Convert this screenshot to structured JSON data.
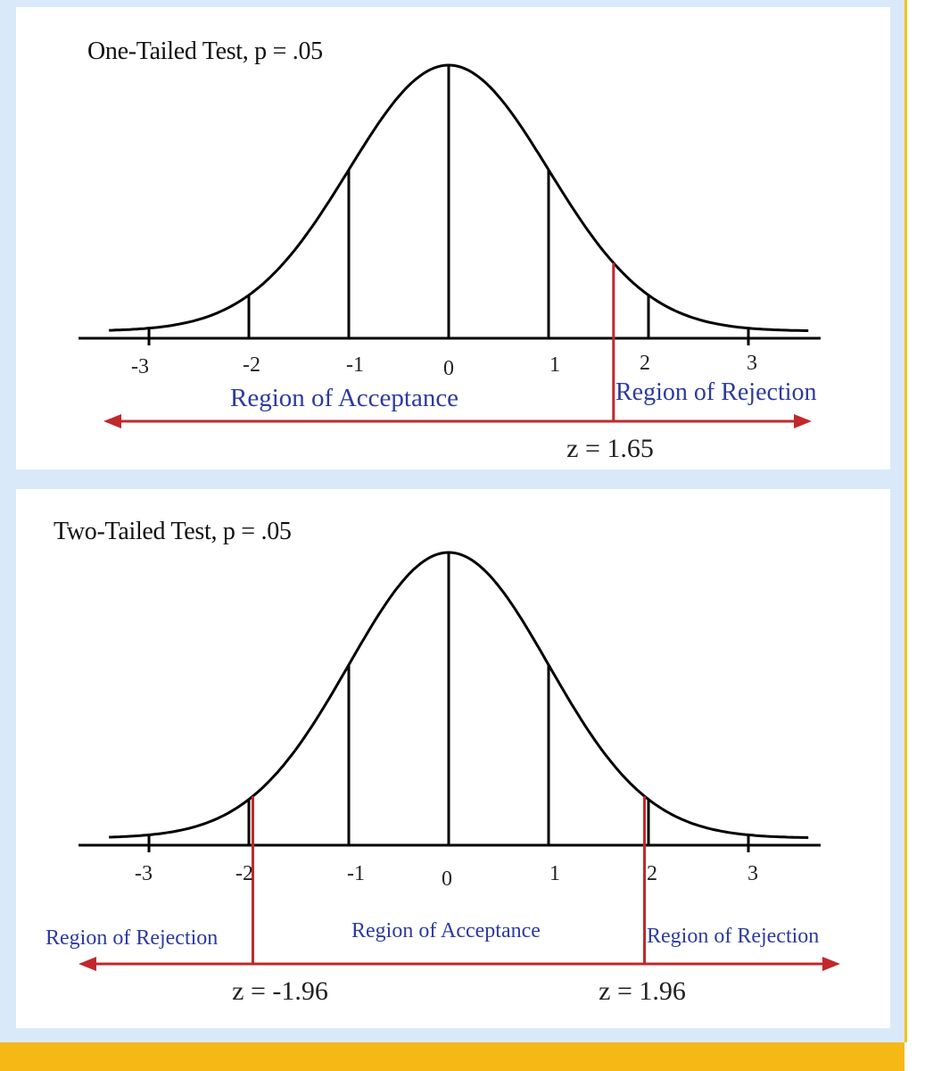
{
  "colors": {
    "frame": "#d9e9f9",
    "accent": "#f6b814",
    "curve": "#000000",
    "critical": "#c0282d",
    "region_text": "#2d3aa0"
  },
  "tick_labels": [
    "-3",
    "-2",
    "-1",
    "0",
    "1",
    "2",
    "3"
  ],
  "one_tailed": {
    "title": "One-Tailed Test, p = .05",
    "critical_values": [
      1.65
    ],
    "acceptance_label": "Region of Acceptance",
    "rejection_label": "Region of Rejection",
    "z_label": "z = 1.65"
  },
  "two_tailed": {
    "title": "Two-Tailed Test, p = .05",
    "critical_values": [
      -1.96,
      1.96
    ],
    "acceptance_label": "Region of Acceptance",
    "rejection_left_label": "Region of Rejection",
    "rejection_right_label": "Region of Rejection",
    "z_left_label": "z = -1.96",
    "z_right_label": "z = 1.96"
  }
}
